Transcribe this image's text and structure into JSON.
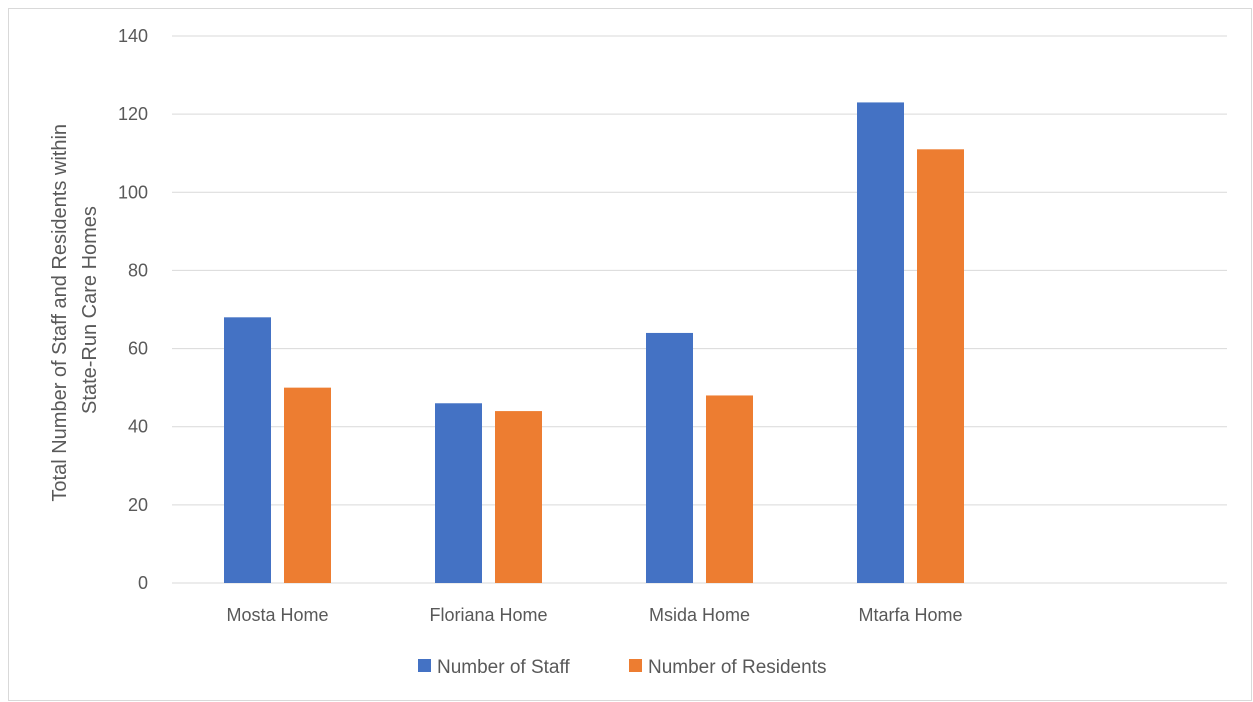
{
  "chart_data": {
    "type": "bar",
    "categories": [
      "Mosta Home",
      "Floriana Home",
      "Msida Home",
      "Mtarfa Home"
    ],
    "series": [
      {
        "name": "Number of Staff",
        "values": [
          68,
          46,
          64,
          123
        ],
        "color": "#4472C4"
      },
      {
        "name": "Number of Residents",
        "values": [
          50,
          44,
          48,
          111
        ],
        "color": "#ED7D31"
      }
    ],
    "title": "",
    "xlabel": "",
    "ylabel_lines": [
      "Total Number of Staff and Residents within",
      "State-Run Care Homes"
    ],
    "ylim": [
      0,
      140
    ],
    "yticks": [
      0,
      20,
      40,
      60,
      80,
      100,
      120,
      140
    ],
    "grid": true,
    "legend_position": "bottom"
  }
}
